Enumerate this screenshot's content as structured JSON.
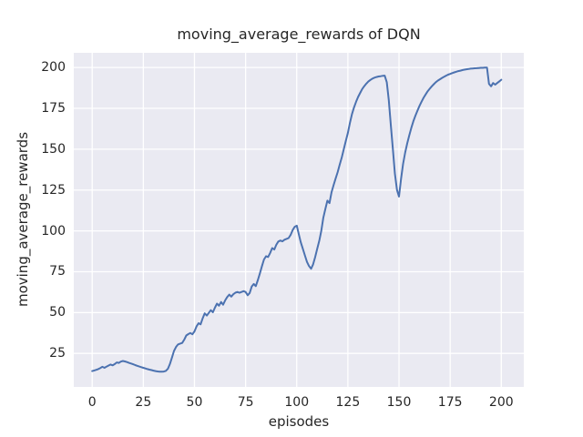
{
  "chart_data": {
    "type": "line",
    "title": "moving_average_rewards of DQN",
    "xlabel": "episodes",
    "ylabel": "moving_average_rewards",
    "x_ticks": [
      0,
      25,
      50,
      75,
      100,
      125,
      150,
      175,
      200
    ],
    "y_ticks": [
      25,
      50,
      75,
      100,
      125,
      150,
      175,
      200
    ],
    "xlim": [
      -9,
      211
    ],
    "ylim": [
      4.5,
      209
    ],
    "grid": true,
    "legend": "none",
    "colors": {
      "figure_background": "#ffffff",
      "axes_background": "#EAEAF2",
      "gridline": "#ffffff",
      "text": "#262626",
      "line": "#4C72B0"
    },
    "series": [
      {
        "name": "moving_average_rewards",
        "color": "#4C72B0",
        "points": [
          [
            0,
            14.2
          ],
          [
            1,
            14.6
          ],
          [
            2,
            15.0
          ],
          [
            3,
            15.4
          ],
          [
            4,
            16.1
          ],
          [
            5,
            16.8
          ],
          [
            6,
            16.2
          ],
          [
            7,
            16.9
          ],
          [
            8,
            17.6
          ],
          [
            9,
            18.2
          ],
          [
            10,
            17.7
          ],
          [
            11,
            18.5
          ],
          [
            12,
            19.5
          ],
          [
            13,
            19.2
          ],
          [
            14,
            20.0
          ],
          [
            15,
            20.4
          ],
          [
            16,
            20.1
          ],
          [
            17,
            19.7
          ],
          [
            18,
            19.2
          ],
          [
            19,
            18.8
          ],
          [
            20,
            18.4
          ],
          [
            21,
            17.9
          ],
          [
            22,
            17.4
          ],
          [
            23,
            17.0
          ],
          [
            24,
            16.6
          ],
          [
            25,
            16.2
          ],
          [
            26,
            15.8
          ],
          [
            27,
            15.4
          ],
          [
            28,
            15.1
          ],
          [
            29,
            14.8
          ],
          [
            30,
            14.5
          ],
          [
            31,
            14.2
          ],
          [
            32,
            14.0
          ],
          [
            33,
            13.8
          ],
          [
            34,
            13.8
          ],
          [
            35,
            13.9
          ],
          [
            36,
            14.3
          ],
          [
            37,
            15.6
          ],
          [
            38,
            18.5
          ],
          [
            39,
            22.5
          ],
          [
            40,
            26.5
          ],
          [
            41,
            29.0
          ],
          [
            42,
            30.5
          ],
          [
            43,
            31.0
          ],
          [
            44,
            31.4
          ],
          [
            45,
            33.5
          ],
          [
            46,
            36.0
          ],
          [
            47,
            36.8
          ],
          [
            48,
            37.5
          ],
          [
            49,
            36.7
          ],
          [
            50,
            38.5
          ],
          [
            51,
            41.5
          ],
          [
            52,
            43.5
          ],
          [
            53,
            42.8
          ],
          [
            54,
            46.5
          ],
          [
            55,
            49.5
          ],
          [
            56,
            48.2
          ],
          [
            57,
            49.8
          ],
          [
            58,
            51.5
          ],
          [
            59,
            50.2
          ],
          [
            60,
            53.0
          ],
          [
            61,
            55.5
          ],
          [
            62,
            54.2
          ],
          [
            63,
            56.5
          ],
          [
            64,
            54.8
          ],
          [
            65,
            57.5
          ],
          [
            66,
            59.5
          ],
          [
            67,
            61.0
          ],
          [
            68,
            59.8
          ],
          [
            69,
            61.2
          ],
          [
            70,
            62.2
          ],
          [
            71,
            62.6
          ],
          [
            72,
            62.1
          ],
          [
            73,
            62.6
          ],
          [
            74,
            63.1
          ],
          [
            75,
            62.6
          ],
          [
            76,
            60.6
          ],
          [
            77,
            62.0
          ],
          [
            78,
            66.0
          ],
          [
            79,
            67.5
          ],
          [
            80,
            66.2
          ],
          [
            81,
            70.0
          ],
          [
            82,
            74.0
          ],
          [
            83,
            78.5
          ],
          [
            84,
            82.5
          ],
          [
            85,
            84.5
          ],
          [
            86,
            84.0
          ],
          [
            87,
            86.5
          ],
          [
            88,
            89.5
          ],
          [
            89,
            88.6
          ],
          [
            90,
            91.5
          ],
          [
            91,
            93.5
          ],
          [
            92,
            94.1
          ],
          [
            93,
            93.6
          ],
          [
            94,
            94.6
          ],
          [
            95,
            95.1
          ],
          [
            96,
            95.6
          ],
          [
            97,
            97.5
          ],
          [
            98,
            100.5
          ],
          [
            99,
            102.5
          ],
          [
            100,
            103.2
          ],
          [
            101,
            98.0
          ],
          [
            102,
            93.0
          ],
          [
            103,
            89.0
          ],
          [
            104,
            85.0
          ],
          [
            105,
            81.0
          ],
          [
            106,
            78.5
          ],
          [
            107,
            76.8
          ],
          [
            108,
            79.5
          ],
          [
            109,
            84.0
          ],
          [
            110,
            89.0
          ],
          [
            111,
            94.0
          ],
          [
            112,
            100.0
          ],
          [
            113,
            108.0
          ],
          [
            114,
            113.5
          ],
          [
            115,
            118.5
          ],
          [
            116,
            117.0
          ],
          [
            117,
            123.5
          ],
          [
            118,
            128.0
          ],
          [
            119,
            132.0
          ],
          [
            120,
            136.0
          ],
          [
            121,
            140.5
          ],
          [
            122,
            145.0
          ],
          [
            123,
            150.0
          ],
          [
            124,
            155.0
          ],
          [
            125,
            160.0
          ],
          [
            126,
            166.0
          ],
          [
            127,
            171.5
          ],
          [
            128,
            175.5
          ],
          [
            129,
            179.0
          ],
          [
            130,
            182.0
          ],
          [
            131,
            184.5
          ],
          [
            132,
            186.8
          ],
          [
            133,
            188.6
          ],
          [
            134,
            190.1
          ],
          [
            135,
            191.4
          ],
          [
            136,
            192.4
          ],
          [
            137,
            193.2
          ],
          [
            138,
            193.8
          ],
          [
            139,
            194.2
          ],
          [
            140,
            194.5
          ],
          [
            141,
            194.7
          ],
          [
            142,
            194.9
          ],
          [
            143,
            195.0
          ],
          [
            144,
            191.0
          ],
          [
            145,
            180.0
          ],
          [
            146,
            165.0
          ],
          [
            147,
            150.0
          ],
          [
            148,
            135.0
          ],
          [
            149,
            125.0
          ],
          [
            150,
            121.0
          ],
          [
            151,
            132.0
          ],
          [
            152,
            141.0
          ],
          [
            153,
            148.0
          ],
          [
            154,
            153.5
          ],
          [
            155,
            158.5
          ],
          [
            156,
            163.0
          ],
          [
            157,
            167.0
          ],
          [
            158,
            170.5
          ],
          [
            159,
            173.5
          ],
          [
            160,
            176.5
          ],
          [
            161,
            179.0
          ],
          [
            162,
            181.5
          ],
          [
            163,
            183.5
          ],
          [
            164,
            185.5
          ],
          [
            165,
            187.0
          ],
          [
            166,
            188.5
          ],
          [
            167,
            189.8
          ],
          [
            168,
            191.0
          ],
          [
            169,
            192.0
          ],
          [
            170,
            192.8
          ],
          [
            171,
            193.6
          ],
          [
            172,
            194.3
          ],
          [
            173,
            195.0
          ],
          [
            174,
            195.6
          ],
          [
            175,
            196.1
          ],
          [
            176,
            196.6
          ],
          [
            177,
            197.0
          ],
          [
            178,
            197.4
          ],
          [
            179,
            197.8
          ],
          [
            180,
            198.1
          ],
          [
            181,
            198.4
          ],
          [
            182,
            198.7
          ],
          [
            183,
            198.9
          ],
          [
            184,
            199.1
          ],
          [
            185,
            199.3
          ],
          [
            186,
            199.4
          ],
          [
            187,
            199.5
          ],
          [
            188,
            199.6
          ],
          [
            189,
            199.7
          ],
          [
            190,
            199.8
          ],
          [
            191,
            199.8
          ],
          [
            192,
            199.9
          ],
          [
            193,
            199.9
          ],
          [
            194,
            190.0
          ],
          [
            195,
            188.5
          ],
          [
            196,
            190.5
          ],
          [
            197,
            189.5
          ],
          [
            198,
            190.5
          ],
          [
            199,
            191.5
          ],
          [
            200,
            192.5
          ]
        ]
      }
    ]
  }
}
